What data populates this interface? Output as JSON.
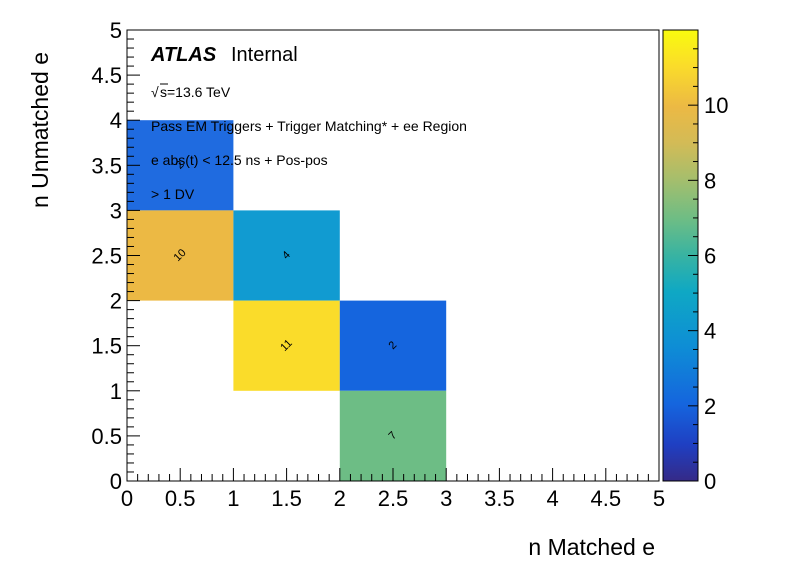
{
  "chart_data": {
    "type": "heatmap",
    "xlabel": "n Matched e",
    "ylabel": "n Unmatched e",
    "xlim": [
      0,
      5
    ],
    "ylim": [
      0,
      5
    ],
    "bin_width": 1,
    "x_ticks": [
      "0",
      "0.5",
      "1",
      "1.5",
      "2",
      "2.5",
      "3",
      "3.5",
      "4",
      "4.5",
      "5"
    ],
    "y_ticks": [
      "0",
      "0.5",
      "1",
      "1.5",
      "2",
      "2.5",
      "3",
      "3.5",
      "4",
      "4.5",
      "5"
    ],
    "z_range": [
      0,
      12
    ],
    "z_ticks": [
      "0",
      "2",
      "4",
      "6",
      "8",
      "10"
    ],
    "colormap": "kBird",
    "cells": [
      {
        "x": 0,
        "y": 3,
        "value": 2,
        "color": "#1f6be0"
      },
      {
        "x": 0,
        "y": 2,
        "value": 10,
        "color": "#ecb944"
      },
      {
        "x": 1,
        "y": 2,
        "value": 4,
        "color": "#119bd1"
      },
      {
        "x": 1,
        "y": 1,
        "value": 11,
        "color": "#fadc2a"
      },
      {
        "x": 2,
        "y": 1,
        "value": 2,
        "color": "#1565de"
      },
      {
        "x": 2,
        "y": 0,
        "value": 7,
        "color": "#6dbd85"
      }
    ],
    "annotations": {
      "atlas": "ATLAS",
      "status": "Internal",
      "sqrt_symbol": "√",
      "energy": "s=13.6 TeV",
      "line1": "Pass EM Triggers + Trigger Matching* + ee Region",
      "line2": "e abs(t) < 12.5 ns + Pos-pos",
      "line3": "> 1 DV"
    }
  }
}
